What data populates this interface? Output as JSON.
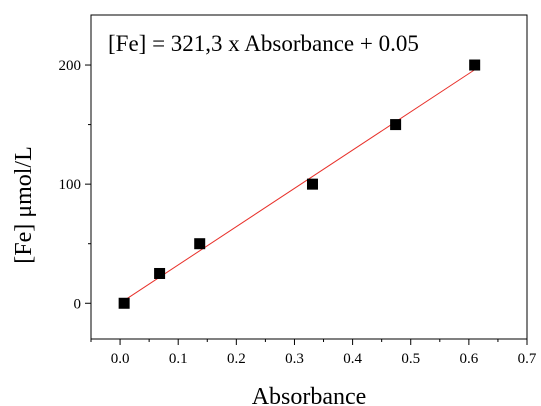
{
  "chart_data": {
    "type": "scatter",
    "annotation": "[Fe] = 321,3 x Absorbance + 0.05",
    "xlabel": "Absorbance",
    "ylabel": "[Fe] μmol/L",
    "xlim": [
      -0.05,
      0.7
    ],
    "ylim": [
      -30,
      242
    ],
    "x_ticks": [
      0.0,
      0.1,
      0.2,
      0.3,
      0.4,
      0.5,
      0.6,
      0.7
    ],
    "x_tick_labels": [
      "0.0",
      "0.1",
      "0.2",
      "0.3",
      "0.4",
      "0.5",
      "0.6",
      "0.7"
    ],
    "y_ticks": [
      0,
      100,
      200
    ],
    "y_tick_labels": [
      "0",
      "100",
      "200"
    ],
    "grid": false,
    "series": [
      {
        "marker": "square",
        "color": "#000000",
        "x": [
          0.007,
          0.068,
          0.137,
          0.331,
          0.474,
          0.61
        ],
        "y": [
          0,
          25,
          50,
          100,
          150,
          200
        ]
      }
    ],
    "fit_line": {
      "color": "#e8302a",
      "slope": 321.3,
      "intercept": 0.05,
      "x_range": [
        0.007,
        0.61
      ]
    }
  }
}
